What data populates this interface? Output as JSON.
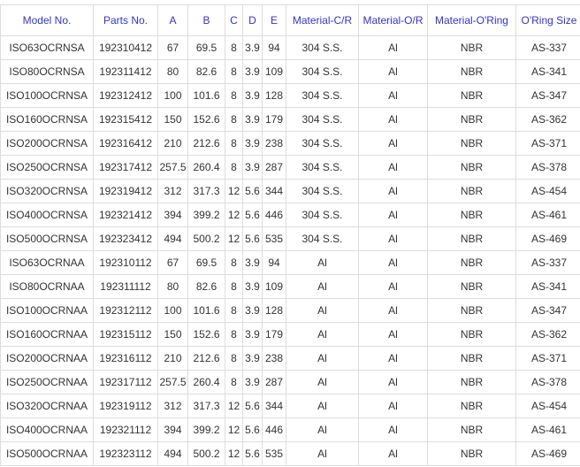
{
  "headers": [
    "Model No.",
    "Parts No.",
    "A",
    "B",
    "C",
    "D",
    "E",
    "Material-C/R",
    "Material-O/R",
    "Material-O'Ring",
    "O'Ring Size"
  ],
  "rows": [
    [
      "ISO63OCRNSA",
      "192310412",
      "67",
      "69.5",
      "8",
      "3.9",
      "94",
      "304 S.S.",
      "Al",
      "NBR",
      "AS-337"
    ],
    [
      "ISO80OCRNSA",
      "192311412",
      "80",
      "82.6",
      "8",
      "3.9",
      "109",
      "304 S.S.",
      "Al",
      "NBR",
      "AS-341"
    ],
    [
      "ISO100OCRNSA",
      "192312412",
      "100",
      "101.6",
      "8",
      "3.9",
      "128",
      "304 S.S.",
      "Al",
      "NBR",
      "AS-347"
    ],
    [
      "ISO160OCRNSA",
      "192315412",
      "150",
      "152.6",
      "8",
      "3.9",
      "179",
      "304 S.S.",
      "Al",
      "NBR",
      "AS-362"
    ],
    [
      "ISO200OCRNSA",
      "192316412",
      "210",
      "212.6",
      "8",
      "3.9",
      "238",
      "304 S.S.",
      "Al",
      "NBR",
      "AS-371"
    ],
    [
      "ISO250OCRNSA",
      "192317412",
      "257.5",
      "260.4",
      "8",
      "3.9",
      "287",
      "304 S.S.",
      "Al",
      "NBR",
      "AS-378"
    ],
    [
      "ISO320OCRNSA",
      "192319412",
      "312",
      "317.3",
      "12",
      "5.6",
      "344",
      "304 S.S.",
      "Al",
      "NBR",
      "AS-454"
    ],
    [
      "ISO400OCRNSA",
      "192321412",
      "394",
      "399.2",
      "12",
      "5.6",
      "446",
      "304 S.S.",
      "Al",
      "NBR",
      "AS-461"
    ],
    [
      "ISO500OCRNSA",
      "192323412",
      "494",
      "500.2",
      "12",
      "5.6",
      "535",
      "304 S.S.",
      "Al",
      "NBR",
      "AS-469"
    ],
    [
      "ISO63OCRNAA",
      "192310112",
      "67",
      "69.5",
      "8",
      "3.9",
      "94",
      "Al",
      "Al",
      "NBR",
      "AS-337"
    ],
    [
      "ISO80OCRNAA",
      "192311112",
      "80",
      "82.6",
      "8",
      "3.9",
      "109",
      "Al",
      "Al",
      "NBR",
      "AS-341"
    ],
    [
      "ISO100OCRNAA",
      "192312112",
      "100",
      "101.6",
      "8",
      "3.9",
      "128",
      "Al",
      "Al",
      "NBR",
      "AS-347"
    ],
    [
      "ISO160OCRNAA",
      "192315112",
      "150",
      "152.6",
      "8",
      "3.9",
      "179",
      "Al",
      "Al",
      "NBR",
      "AS-362"
    ],
    [
      "ISO200OCRNAA",
      "192316112",
      "210",
      "212.6",
      "8",
      "3.9",
      "238",
      "Al",
      "Al",
      "NBR",
      "AS-371"
    ],
    [
      "ISO250OCRNAA",
      "192317112",
      "257.5",
      "260.4",
      "8",
      "3.9",
      "287",
      "Al",
      "Al",
      "NBR",
      "AS-378"
    ],
    [
      "ISO320OCRNAA",
      "192319112",
      "312",
      "317.3",
      "12",
      "5.6",
      "344",
      "Al",
      "Al",
      "NBR",
      "AS-454"
    ],
    [
      "ISO400OCRNAA",
      "192321112",
      "394",
      "399.2",
      "12",
      "5.6",
      "446",
      "Al",
      "Al",
      "NBR",
      "AS-461"
    ],
    [
      "ISO500OCRNAA",
      "192323112",
      "494",
      "500.2",
      "12",
      "5.6",
      "535",
      "Al",
      "Al",
      "NBR",
      "AS-469"
    ]
  ],
  "colors": {
    "header_text": "#3333cc",
    "grid": "#dddddd"
  }
}
